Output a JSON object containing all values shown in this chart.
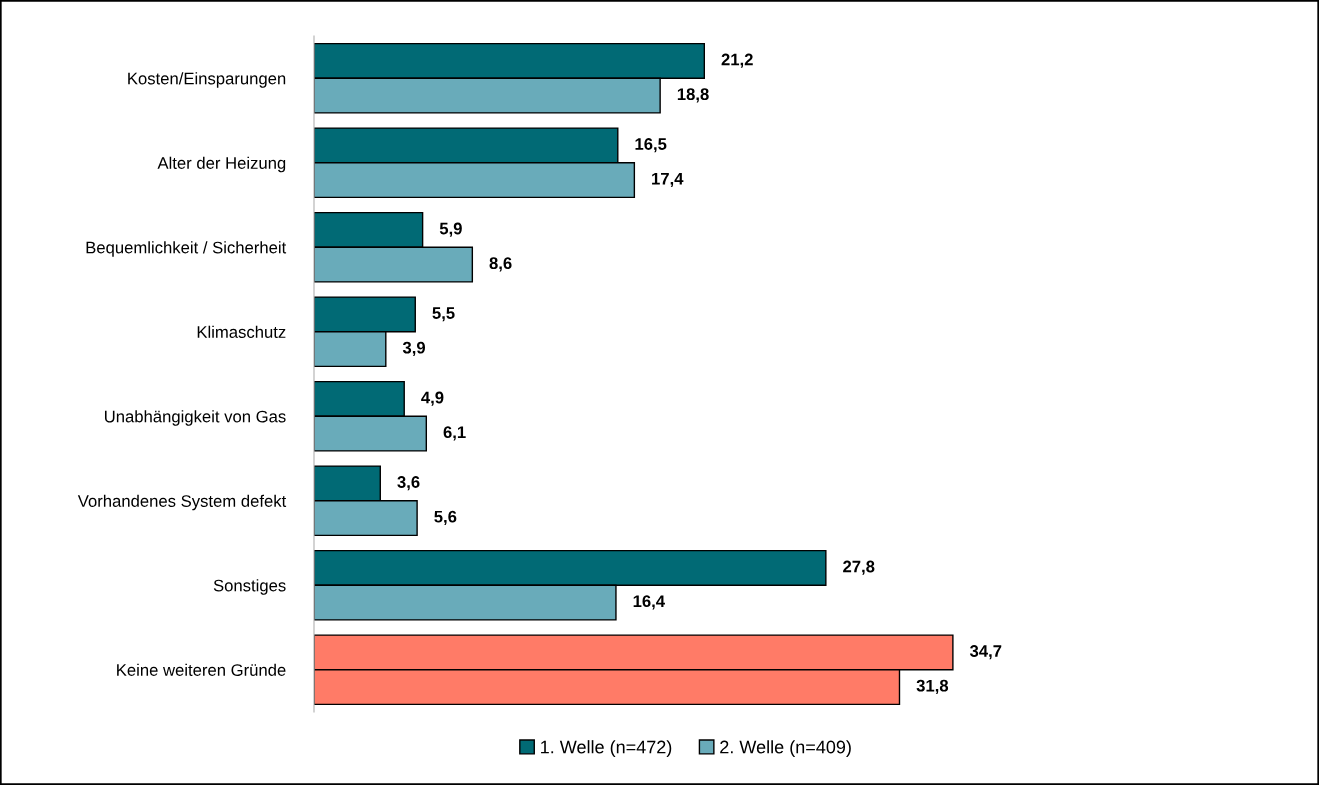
{
  "chart_data": {
    "type": "bar",
    "orientation": "horizontal",
    "categories": [
      "Kosten/Einsparungen",
      "Alter der Heizung",
      "Bequemlichkeit / Sicherheit",
      "Klimaschutz",
      "Unabhängigkeit von Gas",
      "Vorhandenes System defekt",
      "Sonstiges",
      "Keine weiteren Gründe"
    ],
    "series": [
      {
        "name": "1. Welle (n=472)",
        "color": "#016a75",
        "colors": [
          "#016a75",
          "#016a75",
          "#016a75",
          "#016a75",
          "#016a75",
          "#016a75",
          "#016a75",
          "#ff7b67"
        ],
        "values": [
          21.2,
          16.5,
          5.9,
          5.5,
          4.9,
          3.6,
          27.8,
          34.7
        ],
        "value_labels": [
          "21,2",
          "16,5",
          "5,9",
          "5,5",
          "4,9",
          "3,6",
          "27,8",
          "34,7"
        ]
      },
      {
        "name": "2. Welle (n=409)",
        "color": "#69abba",
        "colors": [
          "#69abba",
          "#69abba",
          "#69abba",
          "#69abba",
          "#69abba",
          "#69abba",
          "#69abba",
          "#ff7b67"
        ],
        "values": [
          18.8,
          17.4,
          8.6,
          3.9,
          6.1,
          5.6,
          16.4,
          31.8
        ],
        "value_labels": [
          "18,8",
          "17,4",
          "8,6",
          "3,9",
          "6,1",
          "5,6",
          "16,4",
          "31,8"
        ]
      }
    ],
    "legend": "bottom",
    "grid": false
  }
}
